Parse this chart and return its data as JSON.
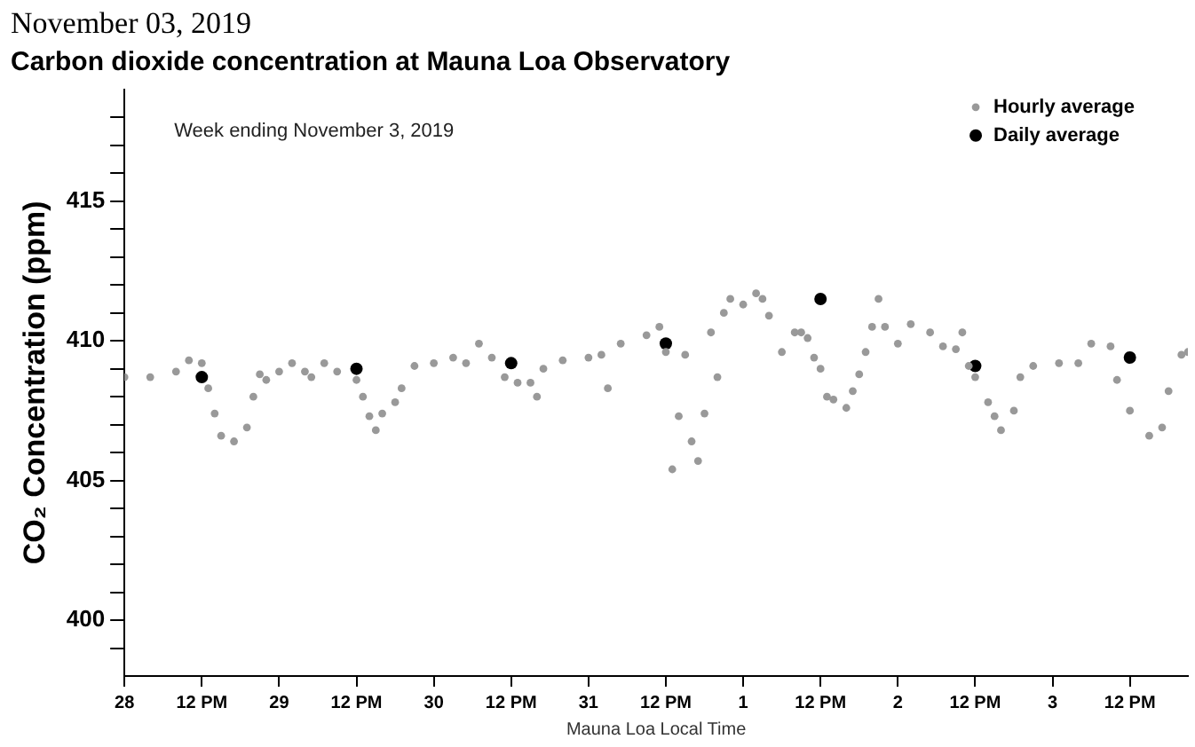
{
  "chart_data": {
    "type": "scatter",
    "subtitle": "November 03, 2019",
    "title": "Carbon dioxide concentration at Mauna Loa Observatory",
    "xlabel": "Mauna Loa Local Time",
    "ylabel": "CO₂ Concentration (ppm)",
    "annotations": [
      "Week ending November 3, 2019"
    ],
    "legend": "top right",
    "marker": "circle",
    "grid": false,
    "xlim": [
      "2019-10-28T00:00",
      "2019-11-03T21:00"
    ],
    "xticks": [
      {
        "value": "2019-10-28T00:00",
        "label": "28"
      },
      {
        "value": "2019-10-28T12:00",
        "label": "12 PM"
      },
      {
        "value": "2019-10-29T00:00",
        "label": "29"
      },
      {
        "value": "2019-10-29T12:00",
        "label": "12 PM"
      },
      {
        "value": "2019-10-30T00:00",
        "label": "30"
      },
      {
        "value": "2019-10-30T12:00",
        "label": "12 PM"
      },
      {
        "value": "2019-10-31T00:00",
        "label": "31"
      },
      {
        "value": "2019-10-31T12:00",
        "label": "12 PM"
      },
      {
        "value": "2019-11-01T00:00",
        "label": "1"
      },
      {
        "value": "2019-11-01T12:00",
        "label": "12 PM"
      },
      {
        "value": "2019-11-02T00:00",
        "label": "2"
      },
      {
        "value": "2019-11-02T12:00",
        "label": "12 PM"
      },
      {
        "value": "2019-11-03T00:00",
        "label": "3"
      },
      {
        "value": "2019-11-03T12:00",
        "label": "12 PM"
      }
    ],
    "ylim": [
      398,
      419
    ],
    "yticks": [
      {
        "value": 399,
        "label": null
      },
      400,
      {
        "value": 401,
        "label": null
      },
      {
        "value": 402,
        "label": null
      },
      {
        "value": 403,
        "label": null
      },
      {
        "value": 404,
        "label": null
      },
      405,
      {
        "value": 406,
        "label": null
      },
      {
        "value": 407,
        "label": null
      },
      {
        "value": 408,
        "label": null
      },
      {
        "value": 409,
        "label": null
      },
      410,
      {
        "value": 411,
        "label": null
      },
      {
        "value": 412,
        "label": null
      },
      {
        "value": 413,
        "label": null
      },
      {
        "value": 414,
        "label": null
      },
      415,
      {
        "value": 416,
        "label": null
      },
      {
        "value": 417,
        "label": null
      },
      {
        "value": 418,
        "label": null
      }
    ],
    "series": [
      {
        "name": "Hourly average",
        "color": "#999999",
        "x": [
          "2019-10-28T00:00",
          "2019-10-28T04:00",
          "2019-10-28T08:00",
          "2019-10-28T10:00",
          "2019-10-28T12:00",
          "2019-10-28T13:00",
          "2019-10-28T14:00",
          "2019-10-28T15:00",
          "2019-10-28T17:00",
          "2019-10-28T19:00",
          "2019-10-28T20:00",
          "2019-10-28T21:00",
          "2019-10-28T22:00",
          "2019-10-29T00:00",
          "2019-10-29T02:00",
          "2019-10-29T04:00",
          "2019-10-29T05:00",
          "2019-10-29T07:00",
          "2019-10-29T09:00",
          "2019-10-29T12:00",
          "2019-10-29T13:00",
          "2019-10-29T14:00",
          "2019-10-29T15:00",
          "2019-10-29T16:00",
          "2019-10-29T18:00",
          "2019-10-29T19:00",
          "2019-10-29T21:00",
          "2019-10-30T00:00",
          "2019-10-30T03:00",
          "2019-10-30T05:00",
          "2019-10-30T07:00",
          "2019-10-30T09:00",
          "2019-10-30T11:00",
          "2019-10-30T13:00",
          "2019-10-30T15:00",
          "2019-10-30T16:00",
          "2019-10-30T17:00",
          "2019-10-30T20:00",
          "2019-10-31T00:00",
          "2019-10-31T02:00",
          "2019-10-31T03:00",
          "2019-10-31T05:00",
          "2019-10-31T09:00",
          "2019-10-31T11:00",
          "2019-10-31T12:00",
          "2019-10-31T13:00",
          "2019-10-31T14:00",
          "2019-10-31T15:00",
          "2019-10-31T16:00",
          "2019-10-31T17:00",
          "2019-10-31T18:00",
          "2019-10-31T19:00",
          "2019-10-31T20:00",
          "2019-10-31T21:00",
          "2019-10-31T22:00",
          "2019-11-01T00:00",
          "2019-11-01T02:00",
          "2019-11-01T03:00",
          "2019-11-01T04:00",
          "2019-11-01T06:00",
          "2019-11-01T08:00",
          "2019-11-01T09:00",
          "2019-11-01T10:00",
          "2019-11-01T11:00",
          "2019-11-01T12:00",
          "2019-11-01T13:00",
          "2019-11-01T14:00",
          "2019-11-01T16:00",
          "2019-11-01T17:00",
          "2019-11-01T18:00",
          "2019-11-01T19:00",
          "2019-11-01T20:00",
          "2019-11-01T21:00",
          "2019-11-01T22:00",
          "2019-11-02T00:00",
          "2019-11-02T02:00",
          "2019-11-02T05:00",
          "2019-11-02T07:00",
          "2019-11-02T09:00",
          "2019-11-02T10:00",
          "2019-11-02T11:00",
          "2019-11-02T12:00",
          "2019-11-02T14:00",
          "2019-11-02T15:00",
          "2019-11-02T16:00",
          "2019-11-02T18:00",
          "2019-11-02T19:00",
          "2019-11-02T21:00",
          "2019-11-03T01:00",
          "2019-11-03T04:00",
          "2019-11-03T06:00",
          "2019-11-03T09:00",
          "2019-11-03T10:00",
          "2019-11-03T12:00",
          "2019-11-03T15:00",
          "2019-11-03T17:00",
          "2019-11-03T18:00",
          "2019-11-03T20:00",
          "2019-11-03T21:00"
        ],
        "values": [
          408.7,
          408.7,
          408.9,
          409.3,
          409.2,
          408.3,
          407.4,
          406.6,
          406.4,
          406.9,
          408.0,
          408.8,
          408.6,
          408.9,
          409.2,
          408.9,
          408.7,
          409.2,
          408.9,
          408.6,
          408.0,
          407.3,
          406.8,
          407.4,
          407.8,
          408.3,
          409.1,
          409.2,
          409.4,
          409.2,
          409.9,
          409.4,
          408.7,
          408.5,
          408.5,
          408.0,
          409.0,
          409.3,
          409.4,
          409.5,
          408.3,
          409.9,
          410.2,
          410.5,
          409.6,
          405.4,
          407.3,
          409.5,
          406.4,
          405.7,
          407.4,
          410.3,
          408.7,
          411.0,
          411.5,
          411.3,
          411.7,
          411.5,
          410.9,
          409.6,
          410.3,
          410.3,
          410.1,
          409.4,
          409.0,
          408.0,
          407.9,
          407.6,
          408.2,
          408.8,
          409.6,
          410.5,
          411.5,
          410.5,
          409.9,
          410.6,
          410.3,
          409.8,
          409.7,
          410.3,
          409.1,
          408.7,
          407.8,
          407.3,
          406.8,
          407.5,
          408.7,
          409.1,
          409.2,
          409.2,
          409.9,
          409.8,
          408.6,
          407.5,
          406.6,
          406.9,
          408.2,
          409.5,
          409.6
        ]
      },
      {
        "name": "Daily average",
        "color": "#000000",
        "x": [
          "2019-10-28T12:00",
          "2019-10-29T12:00",
          "2019-10-30T12:00",
          "2019-10-31T12:00",
          "2019-11-01T12:00",
          "2019-11-02T12:00",
          "2019-11-03T12:00"
        ],
        "values": [
          408.7,
          409.0,
          409.2,
          409.9,
          411.5,
          409.1,
          409.4
        ]
      }
    ]
  }
}
